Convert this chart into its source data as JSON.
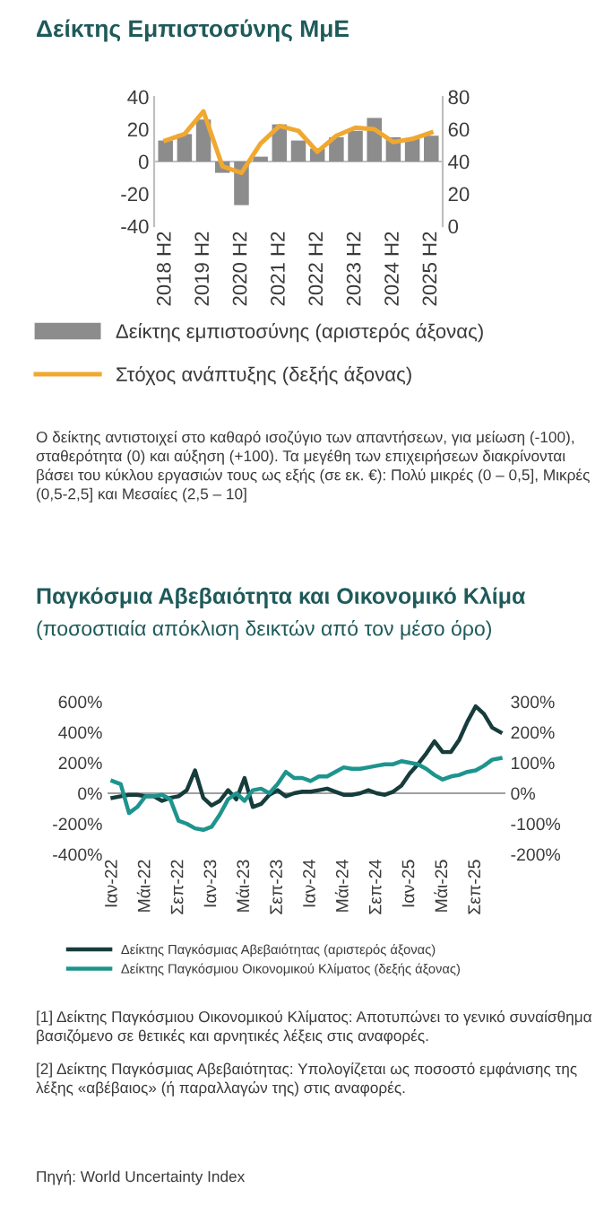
{
  "chart_data": [
    {
      "type": "bar",
      "title": "Δείκτης Εμπιστοσύνης ΜμΕ",
      "categories": [
        "2018 H2",
        null,
        "2019 H2",
        null,
        "2020 H2",
        null,
        "2021 H2",
        null,
        "2022 H2",
        null,
        "2023 H2",
        null,
        "2024 H2",
        null,
        "2025 H2"
      ],
      "series": [
        {
          "name": "Δείκτης εμπιστοσύνης (αριστερός άξονας)",
          "type": "bar",
          "color": "#8c8c8c",
          "values": [
            13,
            17,
            26,
            -7,
            -27,
            3,
            23,
            13,
            8,
            15,
            19,
            27,
            15,
            14,
            16
          ]
        },
        {
          "name": "Στόχος ανάπτυξης (δεξής άξονας)",
          "type": "line",
          "axis": "y2",
          "color": "#f0a830",
          "values": [
            53,
            57,
            71,
            37,
            33,
            51,
            62,
            59,
            46,
            56,
            61,
            60,
            52,
            54,
            58
          ]
        }
      ],
      "ylim": [
        -40,
        40
      ],
      "yticks": [
        -40,
        -20,
        0,
        20,
        40
      ],
      "y2lim": [
        0,
        80
      ],
      "y2ticks": [
        0,
        20,
        40,
        60,
        80
      ],
      "ref_lines": [
        {
          "axis": "y",
          "value": 0,
          "color": "#bfbfbf"
        }
      ],
      "legend": "bottom",
      "annotations": [
        "Ο δείκτης αντιστοιχεί στο καθαρό ισοζύγιο των απαντήσεων, για μείωση (-100), σταθερότητα (0) και αύξηση (+100). Τα μεγέθη των επιχειρήσεων διακρίνονται βάσει του κύκλου εργασιών τους ως εξής (σε εκ. €): Πολύ μικρές (0 – 0,5], Μικρές (0,5-2,5] και Μεσαίες (2,5 – 10]"
      ]
    },
    {
      "type": "line",
      "title": "Παγκόσμια Αβεβαιότητα και Οικονομικό Κλίμα",
      "subtitle": "(ποσοστιαία απόκλιση δεικτών από τον μέσο όρο)",
      "categories": [
        "Ιαν-22",
        null,
        null,
        null,
        "Μάι-22",
        null,
        null,
        null,
        "Σεπ-22",
        null,
        null,
        null,
        "Ιαν-23",
        null,
        null,
        null,
        "Μάι-23",
        null,
        null,
        null,
        "Σεπ-23",
        null,
        null,
        null,
        "Ιαν-24",
        null,
        null,
        null,
        "Μάι-24",
        null,
        null,
        null,
        "Σεπ-24",
        null,
        null,
        null,
        "Ιαν-25",
        null,
        null,
        null,
        "Μάι-25",
        null,
        null,
        null,
        "Σεπ-25",
        null,
        null,
        null
      ],
      "series": [
        {
          "name": "Δείκτης Παγκόσμιας Αβεβαιότητας (αριστερός άξονας)",
          "color": "#173c3c",
          "values": [
            -30,
            -20,
            -10,
            -10,
            -20,
            -20,
            -50,
            -30,
            -20,
            20,
            150,
            -30,
            -80,
            -50,
            20,
            -40,
            100,
            -90,
            -70,
            -10,
            20,
            -20,
            0,
            10,
            10,
            20,
            30,
            10,
            -10,
            -10,
            0,
            20,
            0,
            -10,
            10,
            50,
            130,
            190,
            260,
            340,
            270,
            270,
            350,
            470,
            570,
            520,
            430,
            400
          ]
        },
        {
          "name": "Δείκτης Παγκόσμιου Οικονομικού Κλίματος (δεξής άξονας)",
          "axis": "y2",
          "color": "#1e948e",
          "values": [
            40,
            30,
            -65,
            -45,
            -10,
            -10,
            -5,
            -20,
            -90,
            -100,
            -115,
            -120,
            -110,
            -70,
            -20,
            0,
            -25,
            10,
            15,
            0,
            30,
            70,
            50,
            50,
            40,
            55,
            55,
            70,
            85,
            80,
            80,
            85,
            90,
            95,
            95,
            105,
            100,
            95,
            80,
            60,
            45,
            55,
            60,
            70,
            75,
            90,
            110,
            115
          ]
        }
      ],
      "ylim": [
        -400,
        600
      ],
      "yticks": [
        {
          "value": -400,
          "label": "-400%"
        },
        {
          "value": -200,
          "label": "-200%"
        },
        {
          "value": 0,
          "label": "0%"
        },
        {
          "value": 200,
          "label": "200%"
        },
        {
          "value": 400,
          "label": "400%"
        },
        {
          "value": 600,
          "label": "600%"
        }
      ],
      "y2lim": [
        -200,
        300
      ],
      "y2ticks": [
        {
          "value": -200,
          "label": "-200%"
        },
        {
          "value": -100,
          "label": "-100%"
        },
        {
          "value": 0,
          "label": "0%"
        },
        {
          "value": 100,
          "label": "100%"
        },
        {
          "value": 200,
          "label": "200%"
        },
        {
          "value": 300,
          "label": "300%"
        }
      ],
      "ref_lines": [
        {
          "axis": "y",
          "value": 0,
          "color": "#a0a0a0"
        }
      ],
      "grid": false,
      "legend": "bottom",
      "annotations": [
        "[1] Δείκτης Παγκόσμιου Οικονομικού Κλίματος: Αποτυπώνει το γενικό συναίσθημα βασιζόμενο σε θετικές και αρνητικές λέξεις στις αναφορές.",
        "[2] Δείκτης Παγκόσμιας Αβεβαιότητας: Υπολογίζεται ως ποσοστό εμφάνισης της λέξης «αβέβαιος» (ή παραλλαγών της) στις αναφορές.",
        "Πηγή: World Uncertainty Index"
      ]
    }
  ]
}
